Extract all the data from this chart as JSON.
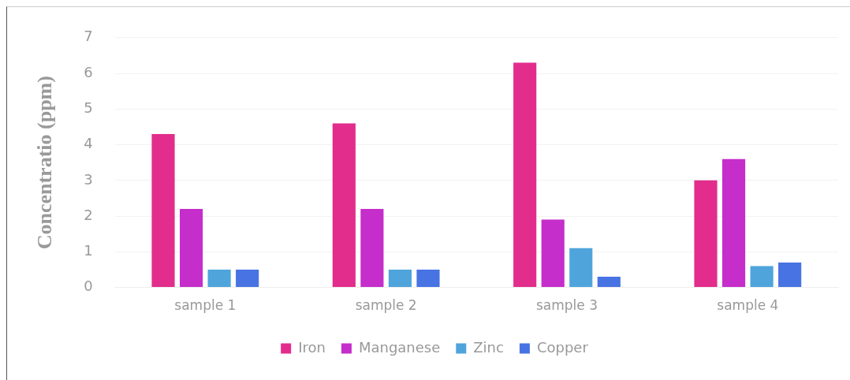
{
  "chart_data": {
    "type": "bar",
    "ylabel": "Concentratio (ppm)",
    "categories": [
      "sample 1",
      "sample 2",
      "sample 3",
      "sample 4"
    ],
    "series": [
      {
        "name": "Iron",
        "color": "#e22d8d",
        "values": [
          4.3,
          4.6,
          6.3,
          3.0
        ]
      },
      {
        "name": "Manganese",
        "color": "#c52ecb",
        "values": [
          2.2,
          2.2,
          1.9,
          3.6
        ]
      },
      {
        "name": "Zinc",
        "color": "#4fa5db",
        "values": [
          0.5,
          0.5,
          1.1,
          0.6
        ]
      },
      {
        "name": "Copper",
        "color": "#4873e3",
        "values": [
          0.5,
          0.5,
          0.3,
          0.7
        ]
      }
    ],
    "ylim": [
      0,
      7
    ],
    "yticks": [
      0,
      1,
      2,
      3,
      4,
      5,
      6,
      7
    ],
    "grid": "y",
    "legend": "bottom"
  }
}
